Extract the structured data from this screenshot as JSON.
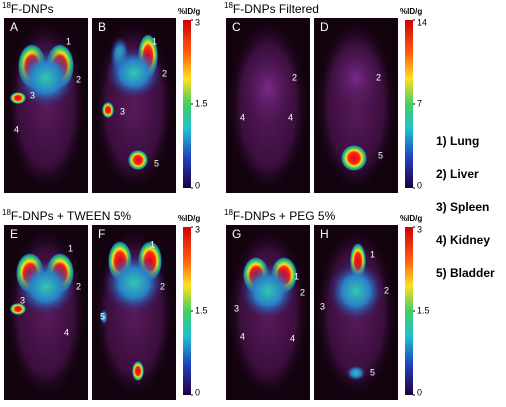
{
  "groups": [
    {
      "title": {
        "isotope": "18",
        "name": "F-DNPs"
      },
      "unit": "%ID/g",
      "scale": {
        "lim": [
          0,
          3
        ],
        "ticks": [
          3,
          1.5,
          0
        ]
      },
      "panels": [
        {
          "letter": "A",
          "labels": [
            "1",
            "2",
            "3",
            "4"
          ]
        },
        {
          "letter": "B",
          "labels": [
            "1",
            "2",
            "3",
            "5"
          ]
        }
      ]
    },
    {
      "title": {
        "isotope": "18",
        "name": "F-DNPs Filtered"
      },
      "unit": "%ID/g",
      "scale": {
        "lim": [
          0,
          14
        ],
        "ticks": [
          14,
          7,
          0
        ]
      },
      "panels": [
        {
          "letter": "C",
          "labels": [
            "2",
            "4",
            "4"
          ]
        },
        {
          "letter": "D",
          "labels": [
            "2",
            "5"
          ]
        }
      ]
    },
    {
      "title": {
        "isotope": "18",
        "name": "F-DNPs + TWEEN 5%"
      },
      "unit": "%ID/g",
      "scale": {
        "lim": [
          0,
          3
        ],
        "ticks": [
          3,
          1.5,
          0
        ]
      },
      "panels": [
        {
          "letter": "E",
          "labels": [
            "1",
            "2",
            "3",
            "4"
          ]
        },
        {
          "letter": "F",
          "labels": [
            "1",
            "2",
            "5"
          ]
        }
      ]
    },
    {
      "title": {
        "isotope": "18",
        "name": "F-DNPs + PEG 5%"
      },
      "unit": "%ID/g",
      "scale": {
        "lim": [
          0,
          3
        ],
        "ticks": [
          3,
          1.5,
          0
        ]
      },
      "panels": [
        {
          "letter": "G",
          "labels": [
            "1",
            "2",
            "3",
            "4",
            "4"
          ]
        },
        {
          "letter": "H",
          "labels": [
            "1",
            "2",
            "3",
            "5"
          ]
        }
      ]
    }
  ],
  "legend": [
    "1) Lung",
    "2) Liver",
    "3) Spleen",
    "4) Kidney",
    "5) Bladder"
  ]
}
